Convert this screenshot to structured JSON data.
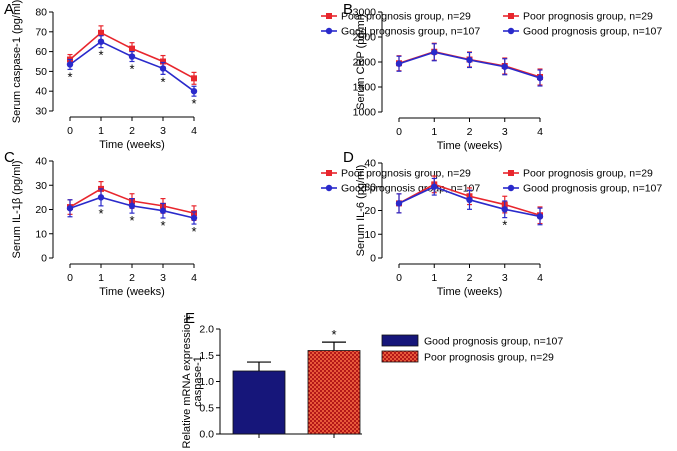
{
  "colors": {
    "poor": "#e8262d",
    "good": "#2a2acb",
    "bar_good_fill": "#16167a",
    "bar_poor_fill": "#b41818"
  },
  "chart_data": [
    {
      "panel": "A",
      "type": "line",
      "xlabel": "Time (weeks)",
      "ylabel": "Serum caspase-1 (pg/ml)",
      "x": [
        0,
        1,
        2,
        3,
        4
      ],
      "xticks": [
        "0",
        "1",
        "2",
        "3",
        "4"
      ],
      "ylim": [
        30,
        80
      ],
      "yticks": [
        "30",
        "40",
        "50",
        "60",
        "70",
        "80"
      ],
      "legend_position": "top-right",
      "series": [
        {
          "name": "Poor prognosis group, n=29",
          "color_key": "poor",
          "values": [
            56,
            69.5,
            61.5,
            55,
            46.5
          ],
          "errors": [
            2.5,
            3.5,
            3,
            3,
            3
          ]
        },
        {
          "name": "Good prognosis group, n=107",
          "color_key": "good",
          "values": [
            53.5,
            65,
            57.5,
            51.5,
            40
          ],
          "errors": [
            2.5,
            3,
            2.5,
            3,
            2.5
          ]
        }
      ],
      "significance": [
        "*",
        "*",
        "*",
        "*",
        "*"
      ]
    },
    {
      "panel": "B",
      "type": "line",
      "xlabel": "Time (weeks)",
      "ylabel": "Serum CRP (pg/ml)",
      "x": [
        0,
        1,
        2,
        3,
        4
      ],
      "xticks": [
        "0",
        "1",
        "2",
        "3",
        "4"
      ],
      "ylim": [
        1000,
        3000
      ],
      "yticks": [
        "1000",
        "1500",
        "2000",
        "2500",
        "3000"
      ],
      "legend_position": "top-right",
      "series": [
        {
          "name": "Poor prognosis group, n=29",
          "color_key": "poor",
          "values": [
            1975,
            2205,
            2050,
            1920,
            1700
          ],
          "errors": [
            150,
            170,
            150,
            160,
            160
          ]
        },
        {
          "name": "Good prognosis group, n=107",
          "color_key": "good",
          "values": [
            1965,
            2195,
            2040,
            1905,
            1680
          ],
          "errors": [
            150,
            170,
            150,
            160,
            160
          ]
        }
      ],
      "significance": [
        "",
        "",
        "",
        "",
        ""
      ]
    },
    {
      "panel": "C",
      "type": "line",
      "xlabel": "Time (weeks)",
      "ylabel": "Serum IL-1β (pg/ml)",
      "x": [
        0,
        1,
        2,
        3,
        4
      ],
      "xticks": [
        "0",
        "1",
        "2",
        "3",
        "4"
      ],
      "ylim": [
        0,
        40
      ],
      "yticks": [
        "0",
        "10",
        "20",
        "30",
        "40"
      ],
      "legend_position": "top-right",
      "series": [
        {
          "name": "Poor prognosis group, n=29",
          "color_key": "poor",
          "values": [
            21,
            28.5,
            23.5,
            21.5,
            18.5
          ],
          "errors": [
            3,
            3,
            3,
            3,
            3
          ]
        },
        {
          "name": "Good prognosis group, n=107",
          "color_key": "good",
          "values": [
            20.5,
            25,
            21.5,
            19.5,
            16.5
          ],
          "errors": [
            3.5,
            3.5,
            3,
            3,
            2.5
          ]
        }
      ],
      "significance": [
        "",
        "*",
        "*",
        "*",
        "*"
      ]
    },
    {
      "panel": "D",
      "type": "line",
      "xlabel": "Time (weeks)",
      "ylabel": "Serum IL-6 (pg/ml)",
      "x": [
        0,
        1,
        2,
        3,
        4
      ],
      "xticks": [
        "0",
        "1",
        "2",
        "3",
        "4"
      ],
      "ylim": [
        0,
        40
      ],
      "yticks": [
        "0",
        "10",
        "20",
        "30",
        "40"
      ],
      "legend_position": "top-right",
      "series": [
        {
          "name": "Poor prognosis group, n=29",
          "color_key": "poor",
          "values": [
            23,
            31,
            26,
            22.5,
            18
          ],
          "errors": [
            4,
            3.5,
            3.5,
            3.5,
            3.5
          ]
        },
        {
          "name": "Good prognosis group, n=107",
          "color_key": "good",
          "values": [
            23,
            30,
            24.5,
            20.5,
            17.5
          ],
          "errors": [
            4,
            3.5,
            4,
            3.5,
            3.5
          ]
        }
      ],
      "significance": [
        "",
        "",
        "",
        "*",
        ""
      ]
    },
    {
      "panel": "E",
      "type": "bar",
      "ylabel": "Relative mRNA expression: caspase-1",
      "ylabel_lines": [
        "Relative mRNA expression:",
        "caspase-1"
      ],
      "ylim": [
        0,
        2.0
      ],
      "yticks": [
        "0.0",
        "0.5",
        "1.0",
        "1.5",
        "2.0"
      ],
      "legend_position": "right",
      "series": [
        {
          "name": "Good prognosis group, n=107",
          "color_key": "bar_good_fill",
          "value": 1.2,
          "error": 0.17,
          "significance": ""
        },
        {
          "name": "Poor prognosis group, n=29",
          "color_key": "bar_poor_fill",
          "value": 1.59,
          "error": 0.16,
          "significance": "*"
        }
      ]
    }
  ]
}
